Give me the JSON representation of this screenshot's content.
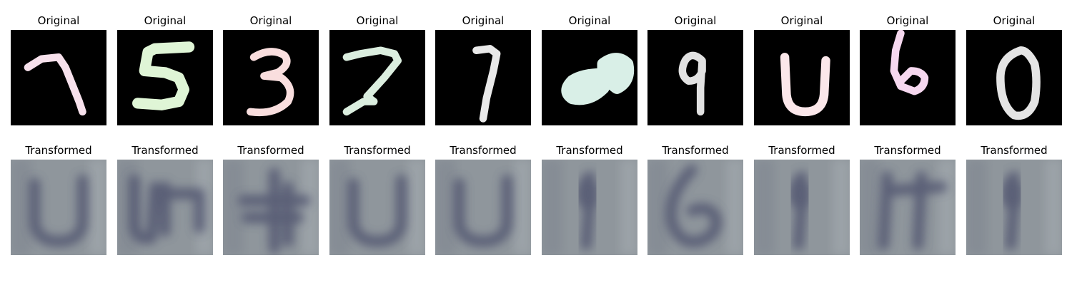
{
  "labels": {
    "original": "Original",
    "transformed": "Transformed"
  },
  "colors": {
    "original_background": "#000000",
    "transformed_background": "#8f969c",
    "transformed_stroke": "#4a4e6a"
  },
  "samples": [
    {
      "original_color": "#f7e1ec",
      "original_digit_icon": "digit-7-icon",
      "transformed_glyph_icon": "blurry-u-glyph-icon"
    },
    {
      "original_color": "#dff5d6",
      "original_digit_icon": "digit-5-icon",
      "transformed_glyph_icon": "blurry-u5-glyph-icon"
    },
    {
      "original_color": "#f9dede",
      "original_digit_icon": "digit-3-icon",
      "transformed_glyph_icon": "blurry-cross-glyph-icon"
    },
    {
      "original_color": "#dbeedf",
      "original_digit_icon": "digit-7-icon",
      "transformed_glyph_icon": "blurry-u-glyph-icon"
    },
    {
      "original_color": "#e9e9e9",
      "original_digit_icon": "digit-7-icon",
      "transformed_glyph_icon": "blurry-u-glyph-icon"
    },
    {
      "original_color": "#d9efe7",
      "original_digit_icon": "digit-8-icon",
      "transformed_glyph_icon": "blurry-1-glyph-icon"
    },
    {
      "original_color": "#e1e1e1",
      "original_digit_icon": "digit-9-icon",
      "transformed_glyph_icon": "blurry-6-glyph-icon"
    },
    {
      "original_color": "#fbe7ea",
      "original_digit_icon": "digit-0-icon",
      "transformed_glyph_icon": "blurry-1-glyph-icon"
    },
    {
      "original_color": "#f6d8ef",
      "original_digit_icon": "digit-6-icon",
      "transformed_glyph_icon": "blurry-11-glyph-icon"
    },
    {
      "original_color": "#e4e4e4",
      "original_digit_icon": "digit-0-icon",
      "transformed_glyph_icon": "blurry-1-glyph-icon"
    }
  ]
}
